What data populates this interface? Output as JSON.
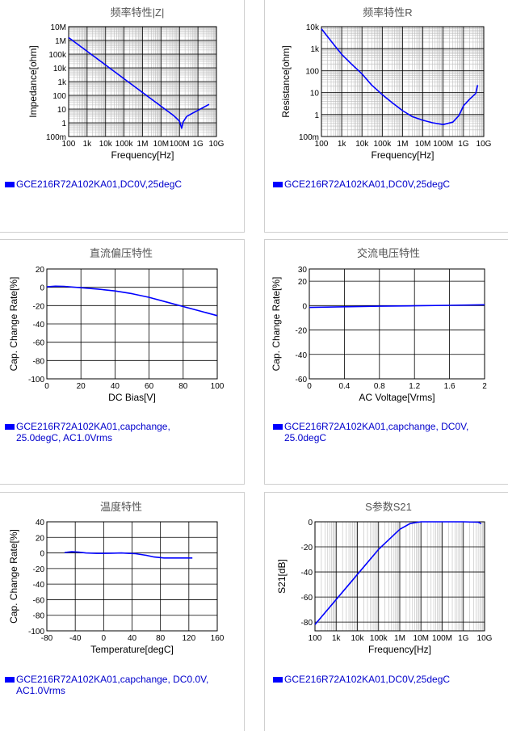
{
  "colors": {
    "series": "#0000ff",
    "legend_text": "#0000cc",
    "grid_major": "#000000",
    "grid_minor": "#bbbbbb"
  },
  "chart_data": [
    {
      "id": "c1",
      "type": "line",
      "title": "频率特性|Z|",
      "xlabel": "Frequency[Hz]",
      "ylabel": "Impedance[ohm]",
      "xscale": "log",
      "yscale": "log",
      "xlim": [
        100,
        10000000000
      ],
      "ylim": [
        0.1,
        10000000
      ],
      "xticks": [
        {
          "v": 100,
          "t": "100"
        },
        {
          "v": 1000,
          "t": "1k"
        },
        {
          "v": 10000,
          "t": "10k"
        },
        {
          "v": 100000,
          "t": "100k"
        },
        {
          "v": 1000000,
          "t": "1M"
        },
        {
          "v": 10000000,
          "t": "10M"
        },
        {
          "v": 100000000,
          "t": "100M"
        },
        {
          "v": 1000000000,
          "t": "1G"
        },
        {
          "v": 10000000000,
          "t": "10G"
        }
      ],
      "yticks": [
        {
          "v": 0.1,
          "t": "100m"
        },
        {
          "v": 1,
          "t": "1"
        },
        {
          "v": 10,
          "t": "10"
        },
        {
          "v": 100,
          "t": "100"
        },
        {
          "v": 1000,
          "t": "1k"
        },
        {
          "v": 10000,
          "t": "10k"
        },
        {
          "v": 100000,
          "t": "100k"
        },
        {
          "v": 1000000,
          "t": "1M"
        },
        {
          "v": 10000000,
          "t": "10M"
        }
      ],
      "series": [
        {
          "x": [
            100,
            1000,
            10000,
            100000,
            1000000,
            10000000,
            50000000,
            100000000,
            130000000,
            160000000,
            250000000,
            1000000000,
            4000000000
          ],
          "y": [
            1600000,
            160000,
            16000,
            1600,
            160,
            16,
            3.2,
            1.3,
            0.4,
            1.2,
            3,
            8,
            22
          ]
        }
      ],
      "legend": [
        "GCE216R72A102KA01,DC0V,25degC"
      ]
    },
    {
      "id": "c2",
      "type": "line",
      "title": "频率特性R",
      "xlabel": "Frequency[Hz]",
      "ylabel": "Resistance[ohm]",
      "xscale": "log",
      "yscale": "log",
      "xlim": [
        100,
        10000000000
      ],
      "ylim": [
        0.1,
        10000
      ],
      "xticks": [
        {
          "v": 100,
          "t": "100"
        },
        {
          "v": 1000,
          "t": "1k"
        },
        {
          "v": 10000,
          "t": "10k"
        },
        {
          "v": 100000,
          "t": "100k"
        },
        {
          "v": 1000000,
          "t": "1M"
        },
        {
          "v": 10000000,
          "t": "10M"
        },
        {
          "v": 100000000,
          "t": "100M"
        },
        {
          "v": 1000000000,
          "t": "1G"
        },
        {
          "v": 10000000000,
          "t": "10G"
        }
      ],
      "yticks": [
        {
          "v": 0.1,
          "t": "100m"
        },
        {
          "v": 1,
          "t": "1"
        },
        {
          "v": 10,
          "t": "10"
        },
        {
          "v": 100,
          "t": "100"
        },
        {
          "v": 1000,
          "t": "1k"
        },
        {
          "v": 10000,
          "t": "10k"
        }
      ],
      "series": [
        {
          "x": [
            100,
            200,
            500,
            1000,
            3000,
            10000,
            30000,
            100000,
            300000,
            1000000,
            3000000,
            10000000,
            30000000,
            100000000,
            300000000,
            600000000,
            1000000000,
            2000000000,
            4000000000,
            5000000000
          ],
          "y": [
            8000,
            3500,
            1200,
            550,
            200,
            70,
            22,
            8,
            3.5,
            1.5,
            0.8,
            0.55,
            0.42,
            0.35,
            0.45,
            0.9,
            2.5,
            5,
            9,
            22
          ]
        }
      ],
      "legend": [
        "GCE216R72A102KA01,DC0V,25degC"
      ]
    },
    {
      "id": "c3",
      "type": "line",
      "title": "直流偏压特性",
      "xlabel": "DC Bias[V]",
      "ylabel": "Cap. Change Rate[%]",
      "xscale": "linear",
      "yscale": "linear",
      "xlim": [
        0,
        100
      ],
      "ylim": [
        -100,
        20
      ],
      "xticks": [
        {
          "v": 0,
          "t": "0"
        },
        {
          "v": 20,
          "t": "20"
        },
        {
          "v": 40,
          "t": "40"
        },
        {
          "v": 60,
          "t": "60"
        },
        {
          "v": 80,
          "t": "80"
        },
        {
          "v": 100,
          "t": "100"
        }
      ],
      "yticks": [
        {
          "v": -100,
          "t": "-100"
        },
        {
          "v": -80,
          "t": "-80"
        },
        {
          "v": -60,
          "t": "-60"
        },
        {
          "v": -40,
          "t": "-40"
        },
        {
          "v": -20,
          "t": "-20"
        },
        {
          "v": 0,
          "t": "0"
        },
        {
          "v": 20,
          "t": "20"
        }
      ],
      "series": [
        {
          "x": [
            0,
            5,
            10,
            20,
            30,
            40,
            50,
            60,
            70,
            80,
            90,
            100
          ],
          "y": [
            0.5,
            1.2,
            1,
            -0.5,
            -2,
            -4,
            -7,
            -11,
            -16,
            -21,
            -26,
            -31
          ]
        }
      ],
      "legend": [
        "GCE216R72A102KA01,capchange,",
        "25.0degC, AC1.0Vrms"
      ]
    },
    {
      "id": "c4",
      "type": "line",
      "title": "交流电压特性",
      "xlabel": "AC Voltage[Vrms]",
      "ylabel": "Cap. Change Rate[%]",
      "xscale": "linear",
      "yscale": "linear",
      "xlim": [
        0,
        2
      ],
      "ylim": [
        -60,
        30
      ],
      "xticks": [
        {
          "v": 0,
          "t": "0"
        },
        {
          "v": 0.4,
          "t": "0.4"
        },
        {
          "v": 0.8,
          "t": "0.8"
        },
        {
          "v": 1.2,
          "t": "1.2"
        },
        {
          "v": 1.6,
          "t": "1.6"
        },
        {
          "v": 2,
          "t": "2"
        }
      ],
      "yticks": [
        {
          "v": -60,
          "t": "-60"
        },
        {
          "v": -40,
          "t": "-40"
        },
        {
          "v": -20,
          "t": "-20"
        },
        {
          "v": 0,
          "t": "0"
        },
        {
          "v": 20,
          "t": "20"
        },
        {
          "v": 30,
          "t": "30"
        }
      ],
      "series": [
        {
          "x": [
            0,
            0.4,
            0.8,
            1.2,
            1.6,
            2
          ],
          "y": [
            -1.5,
            -1,
            -0.5,
            -0.2,
            0.2,
            0.7
          ]
        }
      ],
      "legend": [
        "GCE216R72A102KA01,capchange, DC0V,",
        "25.0degC"
      ]
    },
    {
      "id": "c5",
      "type": "line",
      "title": "温度特性",
      "xlabel": "Temperature[degC]",
      "ylabel": "Cap. Change Rate[%]",
      "xscale": "linear",
      "yscale": "linear",
      "xlim": [
        -80,
        160
      ],
      "ylim": [
        -100,
        40
      ],
      "xticks": [
        {
          "v": -80,
          "t": "-80"
        },
        {
          "v": -40,
          "t": "-40"
        },
        {
          "v": 0,
          "t": "0"
        },
        {
          "v": 40,
          "t": "40"
        },
        {
          "v": 80,
          "t": "80"
        },
        {
          "v": 120,
          "t": "120"
        },
        {
          "v": 160,
          "t": "160"
        }
      ],
      "yticks": [
        {
          "v": -100,
          "t": "-100"
        },
        {
          "v": -80,
          "t": "-80"
        },
        {
          "v": -60,
          "t": "-60"
        },
        {
          "v": -40,
          "t": "-40"
        },
        {
          "v": -20,
          "t": "-20"
        },
        {
          "v": 0,
          "t": "0"
        },
        {
          "v": 20,
          "t": "20"
        },
        {
          "v": 40,
          "t": "40"
        }
      ],
      "series": [
        {
          "x": [
            -55,
            -45,
            -35,
            -25,
            -10,
            0,
            10,
            25,
            35,
            45,
            60,
            70,
            85,
            100,
            115,
            125
          ],
          "y": [
            0.5,
            1.5,
            1,
            0,
            -0.5,
            -0.5,
            -0.3,
            0,
            -0.5,
            -1,
            -3,
            -5,
            -6.5,
            -6.5,
            -6.5,
            -6.5
          ]
        }
      ],
      "legend": [
        "GCE216R72A102KA01,capchange, DC0.0V,",
        "AC1.0Vrms"
      ]
    },
    {
      "id": "c6",
      "type": "line",
      "title": "S参数S21",
      "xlabel": "Frequency[Hz]",
      "ylabel": "S21[dB]",
      "xscale": "log",
      "yscale": "linear",
      "xlim": [
        100,
        10000000000
      ],
      "ylim": [
        -87,
        0
      ],
      "xticks": [
        {
          "v": 100,
          "t": "100"
        },
        {
          "v": 1000,
          "t": "1k"
        },
        {
          "v": 10000,
          "t": "10k"
        },
        {
          "v": 100000,
          "t": "100k"
        },
        {
          "v": 1000000,
          "t": "1M"
        },
        {
          "v": 10000000,
          "t": "10M"
        },
        {
          "v": 100000000,
          "t": "100M"
        },
        {
          "v": 1000000000,
          "t": "1G"
        },
        {
          "v": 10000000000,
          "t": "10G"
        }
      ],
      "yticks": [
        {
          "v": -80,
          "t": "-80"
        },
        {
          "v": -60,
          "t": "-60"
        },
        {
          "v": -40,
          "t": "-40"
        },
        {
          "v": -20,
          "t": "-20"
        },
        {
          "v": 0,
          "t": "0"
        }
      ],
      "series": [
        {
          "x": [
            100,
            1000,
            10000,
            100000,
            1000000,
            3000000,
            6000000,
            10000000,
            30000000,
            100000000,
            1000000000,
            5000000000,
            7000000000
          ],
          "y": [
            -82,
            -62,
            -42,
            -22,
            -6,
            -1.5,
            -0.5,
            0,
            0,
            0,
            0,
            -0.3,
            -1.5
          ]
        }
      ],
      "legend": [
        "GCE216R72A102KA01,DC0V,25degC"
      ]
    }
  ]
}
